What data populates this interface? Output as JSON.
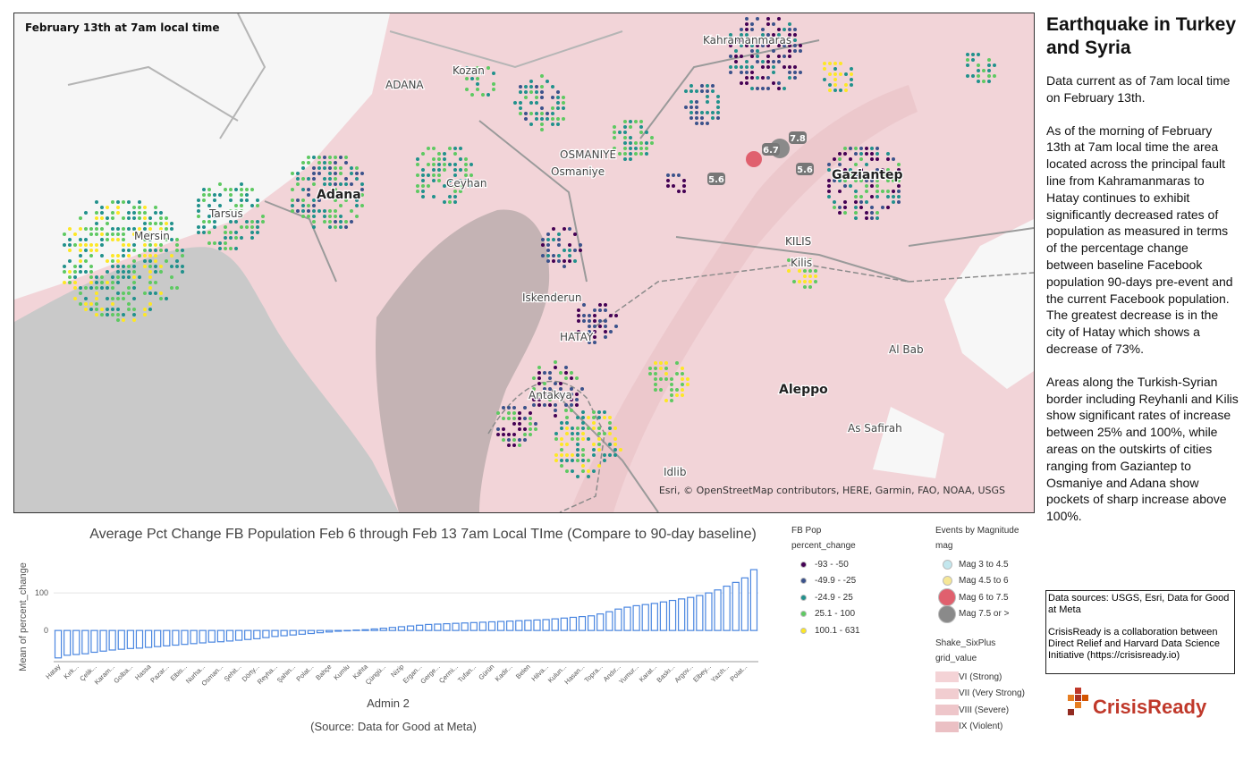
{
  "map": {
    "caption": "February 13th at 7am local time",
    "labels": [
      "Kahramanmaras",
      "Kozan",
      "ADANA",
      "OSMANIYE",
      "Osmaniye",
      "Ceyhan",
      "Adana",
      "Tarsus",
      "Mersin",
      "Gaziantep",
      "KILIS",
      "Kilis",
      "Iskenderun",
      "HATAY",
      "Antakya",
      "Aleppo",
      "Al Bab",
      "As Safirah",
      "Idlib"
    ],
    "quakes": [
      "6.7",
      "7.8",
      "5.6",
      "5.6"
    ],
    "attribution": "Esri, © OpenStreetMap contributors, HERE, Garmin, FAO, NOAA, USGS"
  },
  "chart_data": {
    "type": "bar",
    "title": "Average Pct Change FB Population Feb 6 through Feb 13 7am Local TIme (Compare to 90-day baseline)",
    "subtitle": "(Source: Data for Good at Meta)",
    "x_label": "Admin 2",
    "y_label": "Mean of percent_change",
    "color": "#4a86e0",
    "categories": [
      "Hatay",
      null,
      "Kırk...",
      null,
      "Çelik...",
      null,
      "Karam...",
      null,
      "Golba...",
      null,
      "Hassa",
      null,
      "Pazar...",
      null,
      "Elbis...",
      null,
      "Nurha...",
      null,
      "Osman...",
      null,
      "Şehit...",
      null,
      "Dörty...",
      null,
      "Reyha...",
      null,
      "Şahin...",
      null,
      "Polat...",
      null,
      "Bahçe",
      null,
      "Kumlu",
      null,
      "Kahta",
      null,
      "Çüngü...",
      null,
      "Nizip",
      null,
      "Ergan...",
      null,
      "Gerge...",
      null,
      "Çermi...",
      null,
      "Tufan...",
      null,
      "Gürün",
      null,
      "Kadir...",
      null,
      "Belen",
      null,
      "Hilva...",
      null,
      "Kulun...",
      null,
      "Hasan...",
      null,
      "Topra...",
      null,
      "Andır...",
      null,
      "Yumur...",
      null,
      "Karat...",
      null,
      "Baskı...",
      null,
      "Argov...",
      null,
      "Elbey...",
      null,
      "Yazıh...",
      null,
      "Polat...",
      null
    ],
    "values": [
      -73,
      -66,
      -64,
      -62,
      -58,
      -55,
      -52,
      -50,
      -48,
      -47,
      -45,
      -43,
      -41,
      -39,
      -37,
      -35,
      -33,
      -31,
      -30,
      -28,
      -26,
      -24,
      -22,
      -19,
      -16,
      -14,
      -12,
      -10,
      -8,
      -6,
      -4,
      -2,
      -1,
      1,
      2,
      4,
      6,
      8,
      10,
      12,
      14,
      16,
      17,
      18,
      19,
      20,
      21,
      22,
      23,
      24,
      25,
      26,
      27,
      28,
      29,
      31,
      33,
      35,
      37,
      39,
      44,
      50,
      57,
      62,
      66,
      69,
      72,
      76,
      80,
      84,
      88,
      93,
      100,
      108,
      118,
      128,
      140,
      162
    ],
    "ylim": [
      -83,
      167
    ],
    "yticks": [
      0,
      100
    ],
    "grid": true
  },
  "legend": {
    "fb_pop": {
      "title": "FB Pop",
      "field": "percent_change",
      "items": [
        {
          "label": "-93 - -50",
          "color": "#440154"
        },
        {
          "label": "-49.9 - -25",
          "color": "#3b528b"
        },
        {
          "label": "-24.9 - 25",
          "color": "#21918c"
        },
        {
          "label": "25.1 - 100",
          "color": "#5ec962"
        },
        {
          "label": "100.1 - 631",
          "color": "#fde725"
        }
      ]
    },
    "events": {
      "title": "Events by Magnitude",
      "field": "mag",
      "items": [
        {
          "label": "Mag 3 to 4.5",
          "color": "#c3e7ee"
        },
        {
          "label": "Mag 4.5 to 6",
          "color": "#f6e796"
        },
        {
          "label": "Mag 6 to 7.5",
          "color": "#e0606e"
        },
        {
          "label": "Mag 7.5 or >",
          "color": "#8a8a8a"
        }
      ]
    },
    "shake": {
      "title": "Shake_SixPlus",
      "field": "grid_value",
      "items": [
        {
          "label": "VI (Strong)",
          "color": "#f4d3d6"
        },
        {
          "label": "VII (Very Strong)",
          "color": "#f1cdd0"
        },
        {
          "label": "VIII (Severe)",
          "color": "#eec6ca"
        },
        {
          "label": "IX (Violent)",
          "color": "#ebc0c4"
        }
      ]
    }
  },
  "panel": {
    "title": "Earthquake in Turkey and Syria",
    "paragraphs": [
      "Data current as of 7am local time on February 13th.",
      "As of the morning of February 13th at 7am local time the area located across the principal fault line from Kahramanmaras to Hatay continues to exhibit significantly decreased rates of population as measured in terms of the percentage change between baseline Facebook population 90-days pre-event and the current Facebook population. The greatest decrease is in the city of Hatay which shows a decrease of 73%.",
      "Areas along the Turkish-Syrian border including Reyhanli and Kilis show significant rates of increase between 25% and 100%, while areas on the outskirts of cities ranging from Gaziantep to Osmaniye and Adana show pockets of sharp increase above 100%."
    ],
    "sources": [
      "Data sources: USGS, Esri, Data for Good at Meta",
      "CrisisReady is a collaboration between Direct Relief and Harvard Data Science Initiative (https://crisisready.io)"
    ],
    "logo": "CrisisReady"
  }
}
